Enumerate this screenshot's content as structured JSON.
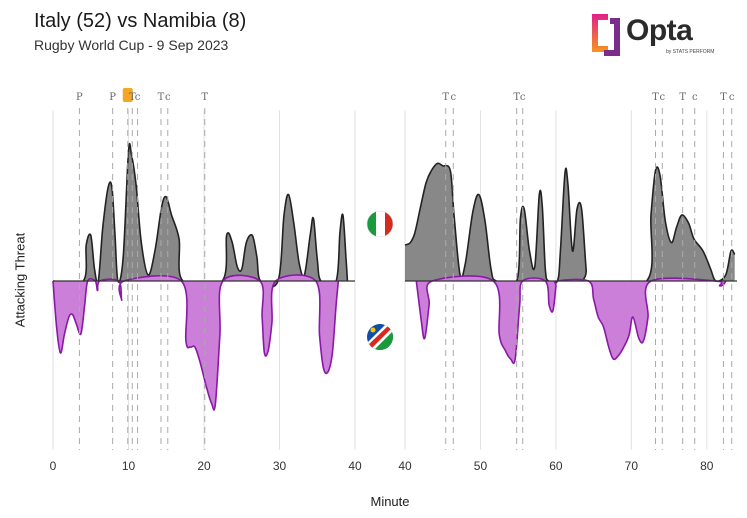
{
  "header": {
    "title": "Italy (52) vs Namibia (8)",
    "subtitle": "Rugby World Cup - 9 Sep 2023"
  },
  "logo": {
    "wordmark": "Opta",
    "tagline": "by STATS PERFORM"
  },
  "colors": {
    "italy": "#888888",
    "namibia": "#cc7fd8",
    "namibia_line": "#8a18a8",
    "line": "#222222",
    "event_card": "#f5a623"
  },
  "chart_data": {
    "type": "area",
    "xlabel": "Minute",
    "ylabel": "Attacking Threat",
    "halves": [
      {
        "xlim": [
          0,
          40
        ],
        "ticks": [
          0,
          10,
          20,
          30,
          40
        ],
        "italy": [
          [
            0,
            0
          ],
          [
            4,
            0
          ],
          [
            4.4,
            0.3
          ],
          [
            5,
            0.38
          ],
          [
            5.5,
            0.1
          ],
          [
            6,
            0
          ],
          [
            6.6,
            0.45
          ],
          [
            7.3,
            0.78
          ],
          [
            7.8,
            0.78
          ],
          [
            8.2,
            0.4
          ],
          [
            8.6,
            0
          ],
          [
            9.3,
            0.2
          ],
          [
            10,
            1.08
          ],
          [
            10.4,
            1.05
          ],
          [
            11,
            0.8
          ],
          [
            11.7,
            0.32
          ],
          [
            12.6,
            0.05
          ],
          [
            13.5,
            0.25
          ],
          [
            14.4,
            0.62
          ],
          [
            15,
            0.7
          ],
          [
            15.7,
            0.55
          ],
          [
            16.7,
            0.35
          ],
          [
            17.2,
            0
          ],
          [
            22.4,
            0
          ],
          [
            23,
            0.38
          ],
          [
            23.7,
            0.33
          ],
          [
            24.4,
            0.12
          ],
          [
            25,
            0.1
          ],
          [
            25.6,
            0.32
          ],
          [
            26.4,
            0.38
          ],
          [
            27,
            0.2
          ],
          [
            27.5,
            0
          ],
          [
            29.8,
            0
          ],
          [
            30.6,
            0.55
          ],
          [
            31.2,
            0.72
          ],
          [
            31.9,
            0.48
          ],
          [
            32.6,
            0.15
          ],
          [
            33.3,
            0.05
          ],
          [
            34.1,
            0.4
          ],
          [
            34.5,
            0.52
          ],
          [
            35,
            0.18
          ],
          [
            35.5,
            0
          ],
          [
            37.5,
            0
          ],
          [
            38,
            0.4
          ],
          [
            38.4,
            0.55
          ],
          [
            38.8,
            0.2
          ],
          [
            39,
            0
          ]
        ],
        "namibia": [
          [
            0,
            0
          ],
          [
            0.5,
            -0.4
          ],
          [
            1,
            -0.6
          ],
          [
            1.5,
            -0.45
          ],
          [
            2.1,
            -0.3
          ],
          [
            2.6,
            -0.28
          ],
          [
            3.1,
            -0.36
          ],
          [
            3.7,
            -0.44
          ],
          [
            4.2,
            -0.2
          ],
          [
            4.6,
            0
          ],
          [
            5.6,
            0
          ],
          [
            5.9,
            -0.08
          ],
          [
            6.2,
            0
          ],
          [
            8.7,
            0
          ],
          [
            9.1,
            -0.16
          ],
          [
            9.4,
            0
          ],
          [
            17,
            0
          ],
          [
            17.6,
            -0.5
          ],
          [
            18.2,
            -0.55
          ],
          [
            18.8,
            -0.55
          ],
          [
            19.5,
            -0.68
          ],
          [
            20.3,
            -0.88
          ],
          [
            21,
            -1.02
          ],
          [
            21.5,
            -1.03
          ],
          [
            22.1,
            -0.45
          ],
          [
            22.5,
            0
          ],
          [
            27.4,
            0
          ],
          [
            27.7,
            -0.3
          ],
          [
            28,
            -0.6
          ],
          [
            28.5,
            -0.58
          ],
          [
            29,
            -0.35
          ],
          [
            29.5,
            0
          ],
          [
            34.8,
            0
          ],
          [
            35.3,
            -0.45
          ],
          [
            35.8,
            -0.72
          ],
          [
            36.4,
            -0.76
          ],
          [
            37,
            -0.6
          ],
          [
            37.5,
            -0.2
          ],
          [
            37.8,
            0
          ]
        ]
      },
      {
        "xlim": [
          40,
          84
        ],
        "ticks": [
          40,
          50,
          60,
          70,
          80
        ],
        "italy": [
          [
            40,
            0.3
          ],
          [
            40.7,
            0.32
          ],
          [
            41.3,
            0.4
          ],
          [
            42,
            0.6
          ],
          [
            42.8,
            0.82
          ],
          [
            43.5,
            0.92
          ],
          [
            44.3,
            0.98
          ],
          [
            45,
            0.96
          ],
          [
            46,
            0.92
          ],
          [
            46.5,
            0.55
          ],
          [
            47.3,
            0.05
          ],
          [
            48,
            0.15
          ],
          [
            49,
            0.58
          ],
          [
            49.8,
            0.72
          ],
          [
            50.6,
            0.5
          ],
          [
            51.4,
            0.1
          ],
          [
            52.1,
            0
          ],
          [
            54.8,
            0
          ],
          [
            55.3,
            0.52
          ],
          [
            55.8,
            0.6
          ],
          [
            56.5,
            0.25
          ],
          [
            57.2,
            0.12
          ],
          [
            57.8,
            0.72
          ],
          [
            58.2,
            0.62
          ],
          [
            58.6,
            0.1
          ],
          [
            59,
            0
          ],
          [
            60.2,
            0
          ],
          [
            60.6,
            0.25
          ],
          [
            61.2,
            0.9
          ],
          [
            61.6,
            0.8
          ],
          [
            62.2,
            0.25
          ],
          [
            62.8,
            0.6
          ],
          [
            63.4,
            0.6
          ],
          [
            64,
            0.1
          ],
          [
            64.3,
            0
          ],
          [
            72,
            0
          ],
          [
            72.6,
            0.55
          ],
          [
            73.2,
            0.92
          ],
          [
            73.8,
            0.88
          ],
          [
            74.5,
            0.5
          ],
          [
            75.3,
            0.32
          ],
          [
            76,
            0.45
          ],
          [
            76.7,
            0.55
          ],
          [
            77.6,
            0.48
          ],
          [
            78.3,
            0.35
          ],
          [
            79.5,
            0.25
          ],
          [
            80.5,
            0.1
          ],
          [
            81.2,
            0
          ],
          [
            82.5,
            0.05
          ],
          [
            83.2,
            0.25
          ],
          [
            83.7,
            0.22
          ]
        ],
        "namibia": [
          [
            41.5,
            0
          ],
          [
            42.1,
            -0.3
          ],
          [
            42.6,
            -0.48
          ],
          [
            43.2,
            -0.2
          ],
          [
            43.6,
            0
          ],
          [
            51.7,
            0
          ],
          [
            52.5,
            -0.45
          ],
          [
            53.3,
            -0.58
          ],
          [
            54,
            -0.65
          ],
          [
            54.6,
            -0.65
          ],
          [
            55.2,
            -0.2
          ],
          [
            55.6,
            0
          ],
          [
            58.6,
            0
          ],
          [
            59.1,
            -0.2
          ],
          [
            59.6,
            -0.25
          ],
          [
            60,
            -0.05
          ],
          [
            60.2,
            0
          ],
          [
            64.3,
            0
          ],
          [
            65,
            -0.15
          ],
          [
            65.6,
            -0.3
          ],
          [
            66.3,
            -0.38
          ],
          [
            67,
            -0.55
          ],
          [
            67.6,
            -0.65
          ],
          [
            68.3,
            -0.62
          ],
          [
            69,
            -0.55
          ],
          [
            69.7,
            -0.45
          ],
          [
            70.2,
            -0.3
          ],
          [
            71,
            -0.48
          ],
          [
            71.6,
            -0.5
          ],
          [
            72.2,
            -0.3
          ],
          [
            72.6,
            0
          ],
          [
            81.2,
            0
          ],
          [
            81.7,
            -0.04
          ],
          [
            82.2,
            -0.03
          ],
          [
            82.5,
            0
          ]
        ]
      }
    ],
    "events": [
      {
        "minute": 3.5,
        "label": "P",
        "team": "italy"
      },
      {
        "minute": 7.9,
        "label": "P",
        "team": "italy"
      },
      {
        "minute": 9.9,
        "label": "",
        "team": "namibia",
        "card": true
      },
      {
        "minute": 10.5,
        "label": "T",
        "team": "italy"
      },
      {
        "minute": 11.2,
        "label": "c",
        "team": "italy"
      },
      {
        "minute": 14.3,
        "label": "T",
        "team": "italy"
      },
      {
        "minute": 15.2,
        "label": "c",
        "team": "italy"
      },
      {
        "minute": 20.1,
        "label": "T",
        "team": "italy"
      },
      {
        "minute": 45.4,
        "label": "T",
        "team": "italy"
      },
      {
        "minute": 46.4,
        "label": "c",
        "team": "italy"
      },
      {
        "minute": 54.8,
        "label": "T",
        "team": "italy"
      },
      {
        "minute": 55.6,
        "label": "c",
        "team": "italy"
      },
      {
        "minute": 73.2,
        "label": "T",
        "team": "italy"
      },
      {
        "minute": 74.1,
        "label": "c",
        "team": "italy"
      },
      {
        "minute": 76.8,
        "label": "T",
        "team": "italy"
      },
      {
        "minute": 78.4,
        "label": "c",
        "team": "italy"
      },
      {
        "minute": 82.2,
        "label": "T",
        "team": "italy"
      },
      {
        "minute": 83.3,
        "label": "c",
        "team": "italy"
      }
    ],
    "teams": [
      "italy",
      "namibia"
    ]
  }
}
